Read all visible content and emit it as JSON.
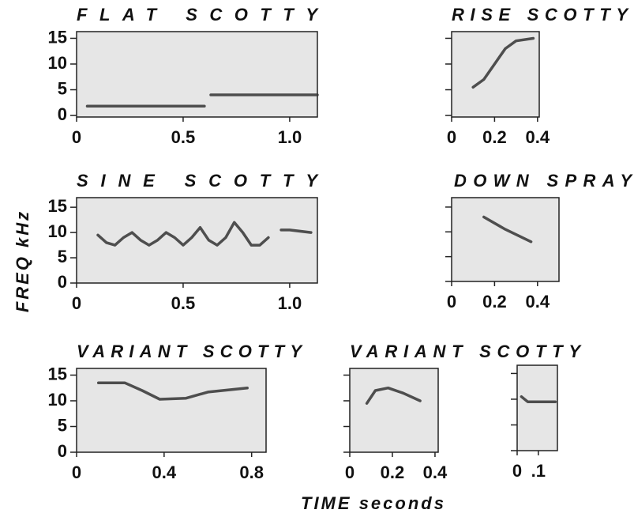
{
  "y_label": "FREQ kHz",
  "x_label": "TIME seconds",
  "chart_data": [
    {
      "type": "line",
      "title": "FLAT SCOTTY",
      "xlim": [
        0,
        1.13
      ],
      "ylim": [
        -0.3,
        16.3
      ],
      "xticks": [
        0,
        0.5,
        {
          "value": 1,
          "label": "1.0"
        }
      ],
      "yticks": [
        0,
        5,
        10,
        15
      ],
      "ytick_labels": true,
      "series": [
        {
          "color": "#333333",
          "x": [
            0.05,
            0.6,
            0.61,
            0.63,
            1.13
          ],
          "values": [
            1.8,
            1.8,
            null,
            4,
            4
          ]
        }
      ]
    },
    {
      "type": "line",
      "title": "RISE SCOTTY",
      "xlim": [
        0,
        0.408
      ],
      "ylim": [
        -0.3,
        16.3
      ],
      "xticks": [
        0,
        0.2,
        0.4
      ],
      "yticks": [
        0,
        5,
        10,
        15
      ],
      "ytick_labels": false,
      "series": [
        {
          "color": "#333333",
          "x": [
            0.1,
            0.15,
            0.2,
            0.25,
            0.3,
            0.38
          ],
          "values": [
            5.5,
            7,
            10,
            13,
            14.5,
            15
          ]
        }
      ]
    },
    {
      "type": "line",
      "title": "SINE SCOTTY",
      "xlim": [
        0,
        1.13
      ],
      "ylim": [
        0,
        16.9
      ],
      "xticks": [
        0,
        0.5,
        {
          "value": 1,
          "label": "1.0"
        }
      ],
      "yticks": [
        0,
        5,
        10,
        15
      ],
      "ytick_labels": true,
      "series": [
        {
          "color": "#333333",
          "x": [
            0.1,
            0.14,
            0.18,
            0.22,
            0.26,
            0.3,
            0.34,
            0.38,
            0.42,
            0.46,
            0.5,
            0.54,
            0.58,
            0.62,
            0.66,
            0.7,
            0.74,
            0.78,
            0.82,
            0.86,
            0.9,
            0.94,
            0.96,
            1.0,
            1.1
          ],
          "values": [
            9.5,
            8,
            7.5,
            9,
            10,
            8.5,
            7.5,
            8.5,
            10,
            9,
            7.5,
            9,
            11,
            8.5,
            7.5,
            9,
            12,
            10,
            7.5,
            7.5,
            9,
            null,
            10.5,
            10.5,
            10
          ]
        }
      ]
    },
    {
      "type": "line",
      "title": "DOWN SPRAY",
      "xlim": [
        0,
        0.5
      ],
      "ylim": [
        0,
        16.9
      ],
      "xticks": [
        0,
        0.2,
        0.4
      ],
      "yticks": [
        0,
        5,
        10,
        15
      ],
      "ytick_labels": false,
      "series": [
        {
          "color": "#333333",
          "x": [
            0.15,
            0.25,
            0.37
          ],
          "values": [
            13,
            10.5,
            8
          ]
        }
      ]
    },
    {
      "type": "line",
      "title": "VARIANT SCOTTY",
      "xlim": [
        0,
        0.866
      ],
      "ylim": [
        0,
        16.3
      ],
      "xticks": [
        0,
        0.4,
        0.8
      ],
      "yticks": [
        0,
        5,
        10,
        15
      ],
      "ytick_labels": true,
      "series": [
        {
          "color": "#333333",
          "x": [
            0.1,
            0.22,
            0.3,
            0.38,
            0.5,
            0.6,
            0.78
          ],
          "values": [
            13.5,
            13.5,
            12,
            10.3,
            10.5,
            11.7,
            12.5
          ]
        }
      ]
    },
    {
      "type": "line",
      "title": "VARIANT SCOTTY",
      "xlim": [
        0,
        0.415
      ],
      "ylim": [
        0,
        16.3
      ],
      "xticks": [
        0,
        0.2,
        0.4
      ],
      "yticks": [
        0,
        5,
        10,
        15
      ],
      "ytick_labels": false,
      "series": [
        {
          "color": "#333333",
          "x": [
            0.08,
            0.12,
            0.18,
            0.25,
            0.33
          ],
          "values": [
            9.5,
            12,
            12.5,
            11.5,
            10
          ]
        }
      ]
    },
    {
      "type": "line",
      "xlim": [
        0,
        0.19
      ],
      "ylim": [
        0,
        16.6
      ],
      "xticks": [
        0,
        {
          "value": 0.1,
          "label": ".1"
        }
      ],
      "yticks": [
        0,
        5,
        10,
        15
      ],
      "ytick_labels": false,
      "series": [
        {
          "color": "#333333",
          "x": [
            0.02,
            0.05,
            0.1,
            0.18
          ],
          "values": [
            10.5,
            9.5,
            9.5,
            9.5
          ]
        }
      ]
    }
  ]
}
